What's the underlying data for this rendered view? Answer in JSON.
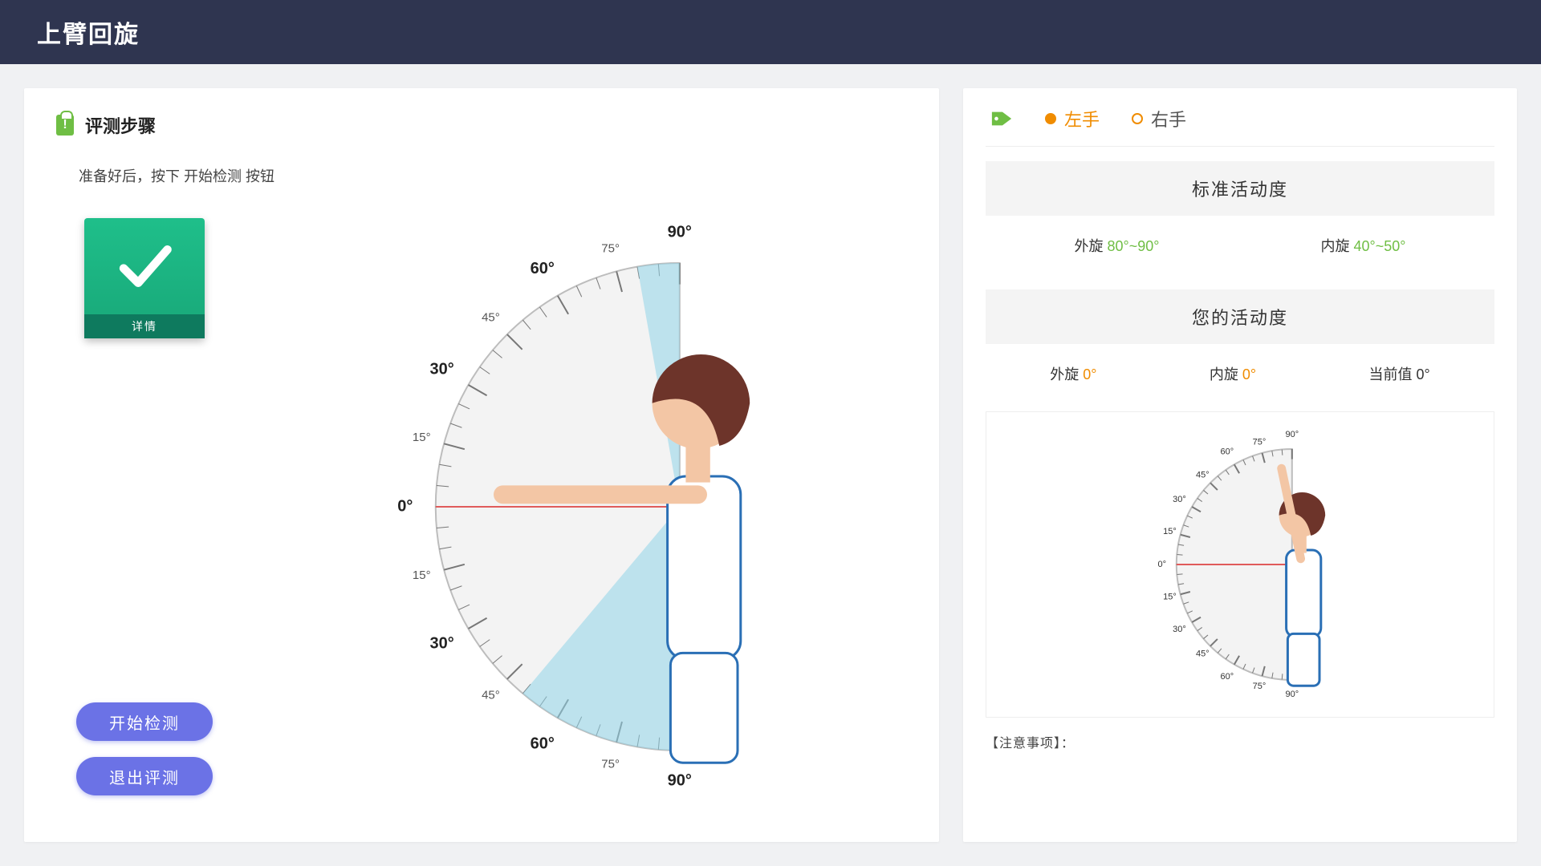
{
  "header": {
    "title": "上臂回旋"
  },
  "left": {
    "section_title": "评测步骤",
    "instruction": "准备好后，按下 开始检测 按钮",
    "ok_card_label": "详情",
    "start_btn": "开始检测",
    "exit_btn": "退出评测"
  },
  "hands": {
    "left": "左手",
    "right": "右手",
    "selected": "left"
  },
  "std": {
    "heading": "标准活动度",
    "out_label": "外旋",
    "out_range": "80°~90°",
    "in_label": "内旋",
    "in_range": "40°~50°"
  },
  "your": {
    "heading": "您的活动度",
    "out_label": "外旋",
    "out_val": "0°",
    "in_label": "内旋",
    "in_val": "0°",
    "cur_label": "当前值",
    "cur_val": "0°"
  },
  "note_label": "【注意事项】：",
  "dial": {
    "radius": 300,
    "bg_fill": "#f3f3f3",
    "bg_stroke": "#bdbdbd",
    "tick_color": "#777",
    "wedge_color": "#8fd3e8",
    "wedge_opacity": 0.55,
    "wedge_up_deg": 10,
    "wedge_down_deg": 40,
    "zero_line_color": "#e05b5b",
    "major_labels_bold": [
      "0°",
      "30°",
      "60°",
      "90°"
    ],
    "major_angles_bold": [
      0,
      30,
      60,
      90
    ],
    "minor_labels": [
      "15°",
      "45°",
      "75°"
    ],
    "minor_angles": [
      15,
      45,
      75
    ],
    "avatar": {
      "skin": "#f3c6a5",
      "hair": "#6d342a",
      "shirt": "#fff",
      "shirt_trim": "#2a6fb5",
      "shorts": "#fff"
    }
  },
  "colors": {
    "header_bg": "#2f3550",
    "page_bg": "#f0f1f3",
    "panel_bg": "#ffffff",
    "accent_green": "#6fbe44",
    "accent_orange": "#f08c00",
    "btn_bg": "#6b72e6",
    "ok_bg": "#1fbf8a"
  }
}
